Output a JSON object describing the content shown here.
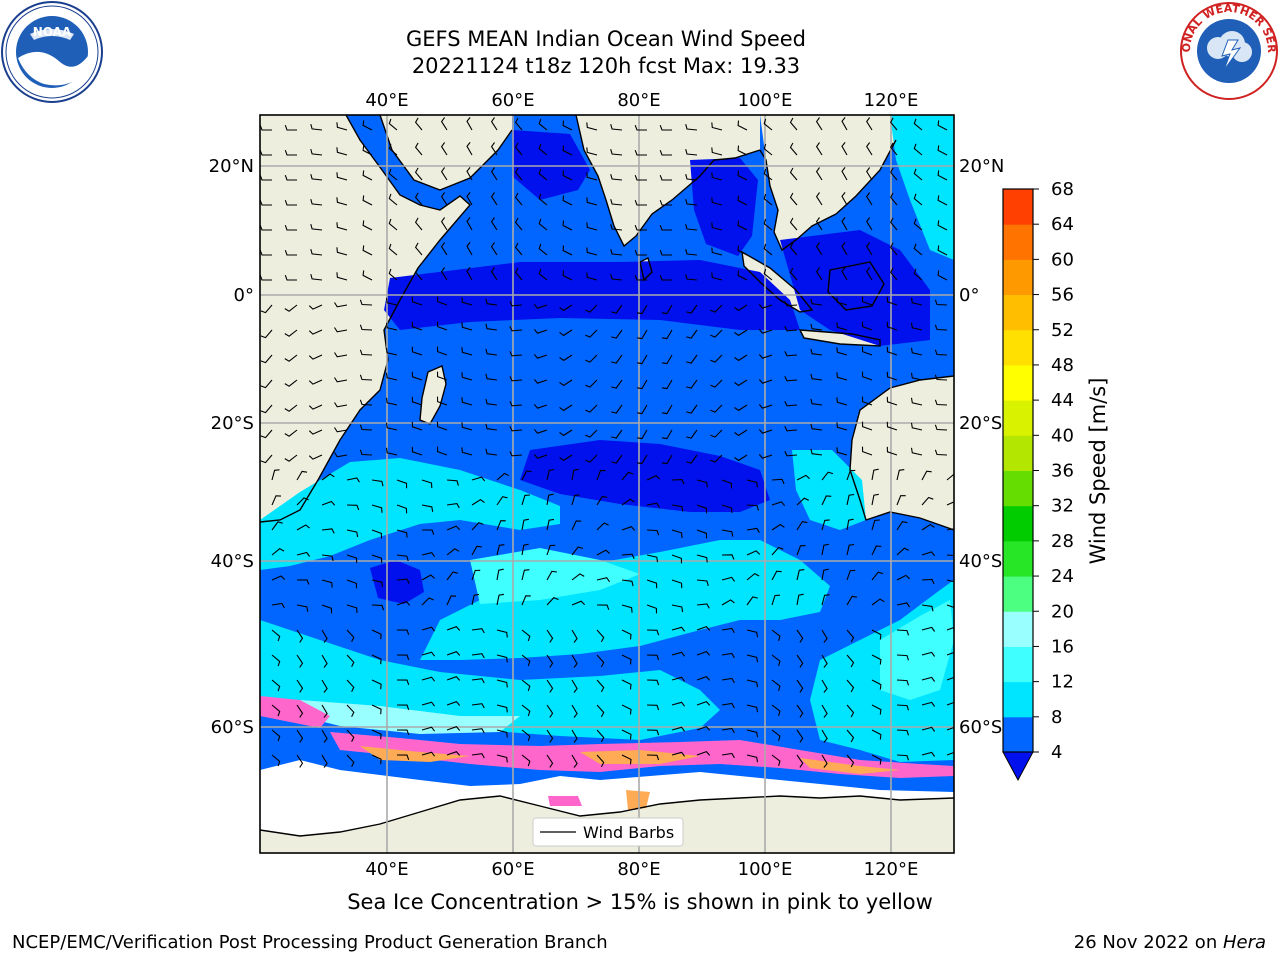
{
  "title_line1": "GEFS MEAN Indian Ocean Wind Speed",
  "title_line2": "20221124 t18z 120h fcst   Max: 19.33",
  "map": {
    "lon_ticks_top": [
      "40°E",
      "60°E",
      "80°E",
      "100°E",
      "120°E"
    ],
    "lon_ticks_bottom": [
      "40°E",
      "60°E",
      "80°E",
      "100°E",
      "120°E"
    ],
    "lat_ticks_left": [
      "20°N",
      "0°",
      "20°S",
      "40°S",
      "60°S"
    ],
    "lat_ticks_right": [
      "20°N",
      "0°",
      "20°S",
      "40°S",
      "60°S"
    ],
    "legend_label": "Wind Barbs"
  },
  "colorbar": {
    "label": "Wind Speed [m/s]",
    "ticks": [
      "4",
      "8",
      "12",
      "16",
      "20",
      "24",
      "28",
      "32",
      "36",
      "40",
      "44",
      "48",
      "52",
      "56",
      "60",
      "64",
      "68"
    ],
    "colors": [
      "#0066ff",
      "#00e5ff",
      "#40ffff",
      "#99ffff",
      "#4dff80",
      "#26e626",
      "#00cc00",
      "#66dd00",
      "#b3e600",
      "#d9f200",
      "#ffff00",
      "#ffe000",
      "#ffbf00",
      "#ff9900",
      "#ff7300",
      "#ff4000"
    ],
    "extend_color": "#0011ee"
  },
  "colors": {
    "land": "#eeeede",
    "ocean_dark": "#0011ee",
    "ocean_mid": "#0066ff",
    "ocean_light": "#00e5ff",
    "ocean_pale": "#99ffff",
    "sea_ice": "#ff66cc",
    "sea_ice_alt": "#ffaa55"
  },
  "logos": {
    "left": "NOAA",
    "right": "NATIONAL WEATHER SERVICE"
  },
  "caption": "Sea Ice Concentration > 15% is shown in pink to yellow",
  "footer_left": "NCEP/EMC/Verification Post Processing Product Generation Branch",
  "footer_right_date": "26 Nov 2022 on ",
  "footer_right_host": "Hera"
}
